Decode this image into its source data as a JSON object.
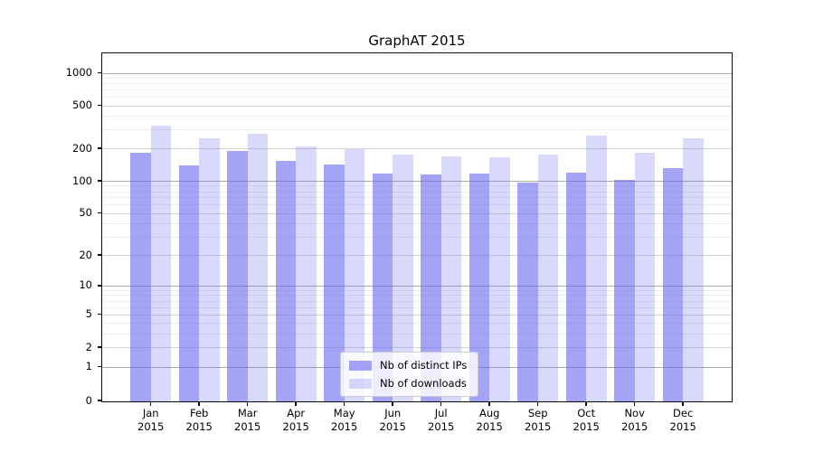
{
  "chart_data": {
    "type": "bar",
    "title": "GraphAT 2015",
    "categories": [
      "Jan 2015",
      "Feb 2015",
      "Mar 2015",
      "Apr 2015",
      "May 2015",
      "Jun 2015",
      "Jul 2015",
      "Aug 2015",
      "Sep 2015",
      "Oct 2015",
      "Nov 2015",
      "Dec 2015"
    ],
    "months": [
      "Jan",
      "Feb",
      "Mar",
      "Apr",
      "May",
      "Jun",
      "Jul",
      "Aug",
      "Sep",
      "Oct",
      "Nov",
      "Dec"
    ],
    "year": "2015",
    "series": [
      {
        "name": "Nb of distinct IPs",
        "color": "#a6a6f3",
        "fill": "rgba(104,104,240,0.6)",
        "values": [
          182,
          138,
          188,
          152,
          143,
          117,
          115,
          116,
          96,
          119,
          103,
          130
        ]
      },
      {
        "name": "Nb of downloads",
        "color": "#dbdbf7",
        "fill": "rgba(104,104,240,0.25)",
        "values": [
          325,
          246,
          273,
          207,
          196,
          175,
          170,
          164,
          175,
          265,
          181,
          246
        ]
      }
    ],
    "y_axis": {
      "scale": "log-like",
      "ticks": [
        0,
        1,
        2,
        5,
        10,
        20,
        50,
        100,
        200,
        500,
        1000
      ],
      "minor_ticks": [
        3,
        4,
        6,
        7,
        8,
        9,
        30,
        40,
        60,
        70,
        80,
        90,
        300,
        400,
        600,
        700,
        800,
        900
      ],
      "range": [
        0,
        1000
      ]
    },
    "legend": {
      "position": "lower center"
    },
    "grid": true
  },
  "style_colors": {
    "bar_dark": "#a6a6f3",
    "bar_light": "#dbdbf7",
    "grid_pow10": "#ababab",
    "grid_labeled": "#d6d6d6",
    "grid_minor": "#ededed",
    "spine": "#0a0a0a",
    "text": "#000000"
  }
}
